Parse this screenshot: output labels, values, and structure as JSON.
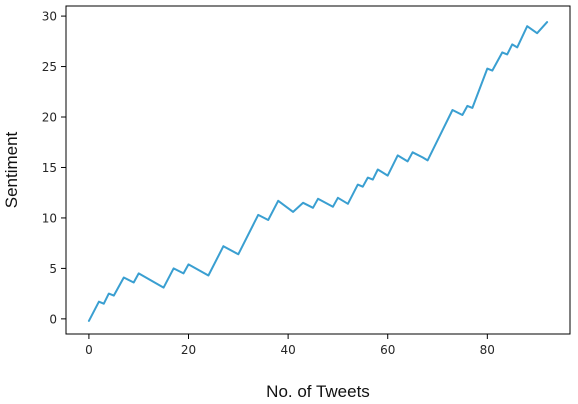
{
  "chart_data": {
    "type": "line",
    "title": "",
    "xlabel": "No. of Tweets",
    "ylabel": "Sentiment",
    "xlim": [
      -4.6,
      96.6
    ],
    "ylim": [
      -1.5,
      31
    ],
    "xticks": [
      0,
      20,
      40,
      60,
      80
    ],
    "yticks": [
      0,
      5,
      10,
      15,
      20,
      25,
      30
    ],
    "grid": false,
    "legend": "none",
    "line_color": "#3a9fd1",
    "series": [
      {
        "x": [
          0,
          2,
          3,
          4,
          5,
          7,
          9,
          10,
          15,
          17,
          19,
          20,
          24,
          27,
          30,
          34,
          36,
          38,
          41,
          43,
          45,
          46,
          49,
          50,
          52,
          54,
          55,
          56,
          57,
          58,
          60,
          62,
          64,
          65,
          67,
          68,
          73,
          75,
          76,
          77,
          80,
          81,
          83,
          84,
          85,
          86,
          88,
          90,
          92
        ],
        "y": [
          -0.2,
          1.7,
          1.5,
          2.5,
          2.3,
          4.1,
          3.6,
          4.5,
          3.1,
          5.0,
          4.5,
          5.4,
          4.3,
          7.2,
          6.4,
          10.3,
          9.8,
          11.7,
          10.6,
          11.5,
          11.0,
          11.9,
          11.1,
          12.0,
          11.4,
          13.3,
          13.1,
          14.0,
          13.8,
          14.8,
          14.2,
          16.2,
          15.6,
          16.5,
          16.0,
          15.7,
          20.7,
          20.2,
          21.1,
          20.9,
          24.8,
          24.6,
          26.4,
          26.2,
          27.2,
          26.9,
          29.0,
          28.3,
          29.4
        ]
      }
    ]
  }
}
